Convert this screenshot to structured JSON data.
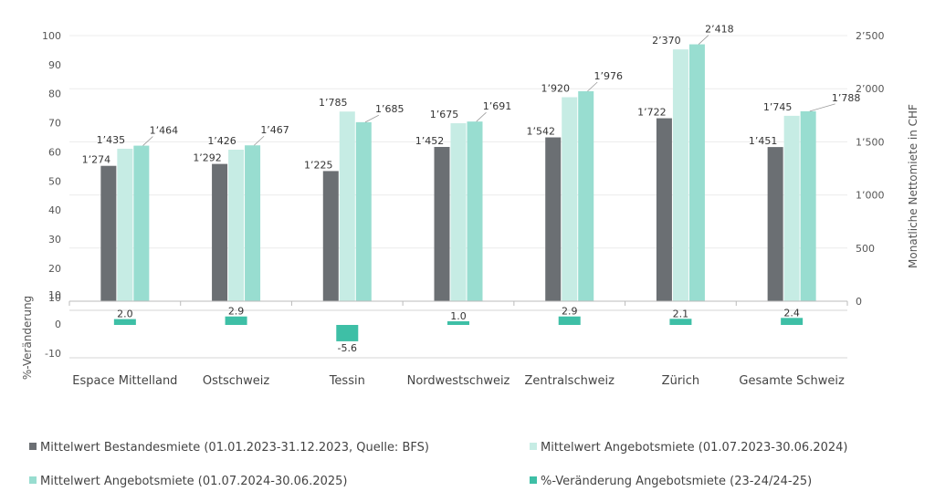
{
  "chart_data": {
    "type": "bar",
    "categories": [
      "Espace Mittelland",
      "Ostschweiz",
      "Tessin",
      "Nordwestschweiz",
      "Zentralschweiz",
      "Zürich",
      "Gesamte Schweiz"
    ],
    "series": [
      {
        "name": "Mittelwert Bestandesmiete (01.01.2023-31.12.2023, Quelle: BFS)",
        "color": "#6b6f73",
        "values": [
          1274,
          1292,
          1225,
          1452,
          1542,
          1722,
          1451
        ],
        "labels": [
          "1’274",
          "1’292",
          "1’225",
          "1’452",
          "1’542",
          "1’722",
          "1’451"
        ]
      },
      {
        "name": "Mittelwert Angebotsmiete (01.07.2023-30.06.2024)",
        "color": "#c6ece4",
        "values": [
          1435,
          1426,
          1785,
          1675,
          1920,
          2370,
          1745
        ],
        "labels": [
          "1’435",
          "1’426",
          "1’785",
          "1’675",
          "1’920",
          "2’370",
          "1’745"
        ]
      },
      {
        "name": "Mittelwert Angebotsmiete (01.07.2024-30.06.2025)",
        "color": "#98ddd0",
        "values": [
          1464,
          1467,
          1685,
          1691,
          1976,
          2418,
          1788
        ],
        "labels": [
          "1’464",
          "1’467",
          "1’685",
          "1’691",
          "1’976",
          "2’418",
          "1’788"
        ]
      },
      {
        "name": "%-Veränderung Angebotsmiete (23-24/24-25)",
        "color": "#3ebfa6",
        "values": [
          2.0,
          2.9,
          -5.6,
          1.0,
          2.9,
          2.1,
          2.4
        ],
        "labels": [
          "2.0",
          "2.9",
          "-5.6",
          "1.0",
          "2.9",
          "2.1",
          "2.4"
        ]
      }
    ],
    "y_right": {
      "title": "Monatliche Nettomiete in CHF",
      "range": [
        0,
        2500
      ],
      "ticks": [
        0,
        500,
        1000,
        1500,
        2000,
        2500
      ],
      "tick_labels": [
        "0",
        "500",
        "1’000",
        "1’500",
        "2’000",
        "2’500"
      ]
    },
    "y_left_upper": {
      "range": [
        10,
        100
      ],
      "tick_labels": [
        "10",
        "20",
        "30",
        "40",
        "50",
        "60",
        "70",
        "80",
        "90",
        "100"
      ]
    },
    "y_left_lower": {
      "title": "%-Veränderung",
      "range": [
        -10,
        10
      ],
      "tick_labels": [
        "10",
        "0",
        "-10"
      ]
    }
  }
}
